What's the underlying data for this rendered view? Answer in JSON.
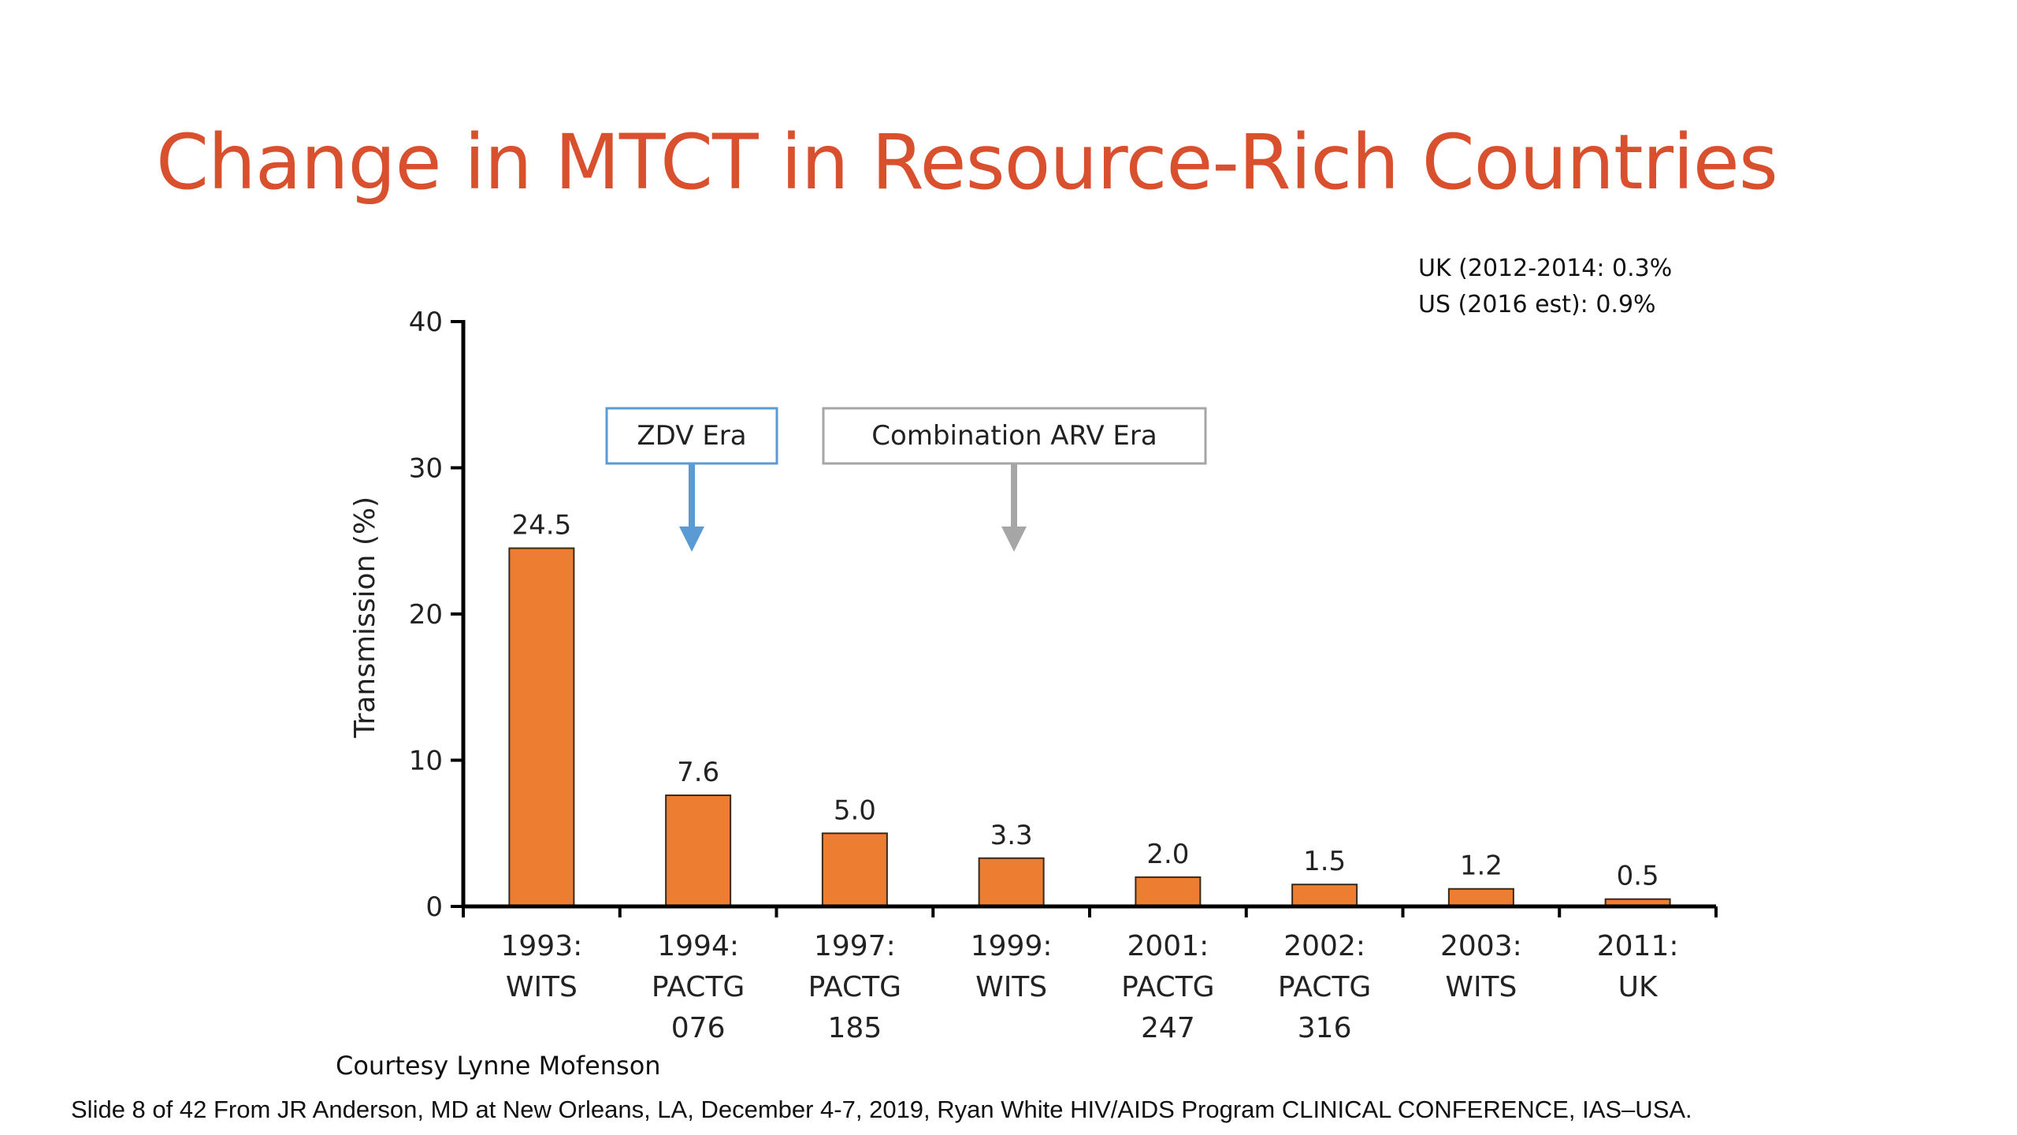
{
  "slide": {
    "title": "Change in MTCT in Resource-Rich Countries",
    "notes": [
      "UK (2012-2014: 0.3%",
      "US (2016 est): 0.9%"
    ],
    "courtesy": "Courtesy Lynne Mofenson",
    "footer": "Slide 8 of 42 From JR Anderson, MD at New Orleans, LA, December 4-7, 2019, Ryan White HIV/AIDS Program CLINICAL CONFERENCE, IAS–USA."
  },
  "colors": {
    "title": "#d9502f",
    "bar": "#ed7d31",
    "bar_outline": "#3a2a1a",
    "zdv_box": "#5b9bd5",
    "combo_box": "#a6a6a6"
  },
  "chart_data": {
    "type": "bar",
    "ylabel": "Transmission (%)",
    "xlabel": "",
    "ylim": [
      0,
      40
    ],
    "yticks": [
      0,
      10,
      20,
      30,
      40
    ],
    "categories": [
      [
        "1993:",
        "WITS"
      ],
      [
        "1994:",
        "PACTG",
        "076"
      ],
      [
        "1997:",
        "PACTG",
        "185"
      ],
      [
        "1999:",
        "WITS"
      ],
      [
        "2001:",
        "PACTG",
        "247"
      ],
      [
        "2002:",
        "PACTG",
        "316"
      ],
      [
        "2003:",
        "WITS"
      ],
      [
        "2011:",
        "UK"
      ]
    ],
    "values": [
      24.5,
      7.6,
      5.0,
      3.3,
      2.0,
      1.5,
      1.2,
      0.5
    ],
    "value_labels": [
      "24.5",
      "7.6",
      "5.0",
      "3.3",
      "2.0",
      "1.5",
      "1.2",
      "0.5"
    ],
    "grid": false,
    "annotations": [
      {
        "text": "ZDV Era",
        "at_category_index": 1,
        "style": "blue-box-down-arrow"
      },
      {
        "text": "Combination ARV Era",
        "at_category_index": 3,
        "style": "gray-box-down-arrow"
      }
    ]
  }
}
